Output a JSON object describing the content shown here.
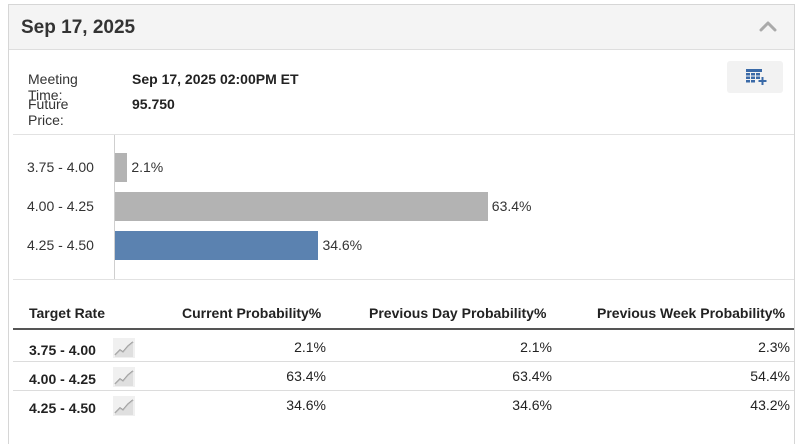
{
  "meeting": {
    "date_title": "Sep 17, 2025",
    "time_label": "Meeting Time:",
    "time_value": "Sep 17, 2025 02:00PM ET",
    "price_label": "Future Price:",
    "price_value": "95.750"
  },
  "colors": {
    "bar_gray": "#b3b3b3",
    "bar_blue": "#5b82b0",
    "accent_export": "#3a6aa8"
  },
  "icons": {
    "collapse": "chevron-up-icon",
    "export": "spreadsheet-add-icon",
    "trend": "sparkline-icon"
  },
  "chart_data": {
    "type": "bar",
    "orientation": "horizontal",
    "categories": [
      "3.75 - 4.00",
      "4.00 - 4.25",
      "4.25 - 4.50"
    ],
    "values": [
      2.1,
      63.4,
      34.6
    ],
    "value_labels": [
      "2.1%",
      "63.4%",
      "34.6%"
    ],
    "highlight_index": 2,
    "xlim": [
      0,
      100
    ]
  },
  "table": {
    "headers": [
      "Target Rate",
      "Current Probability%",
      "Previous Day Probability%",
      "Previous Week Probability%"
    ],
    "rows": [
      {
        "rate": "3.75 - 4.00",
        "current": "2.1%",
        "prev_day": "2.1%",
        "prev_week": "2.3%"
      },
      {
        "rate": "4.00 - 4.25",
        "current": "63.4%",
        "prev_day": "63.4%",
        "prev_week": "54.4%"
      },
      {
        "rate": "4.25 - 4.50",
        "current": "34.6%",
        "prev_day": "34.6%",
        "prev_week": "43.2%"
      }
    ]
  }
}
